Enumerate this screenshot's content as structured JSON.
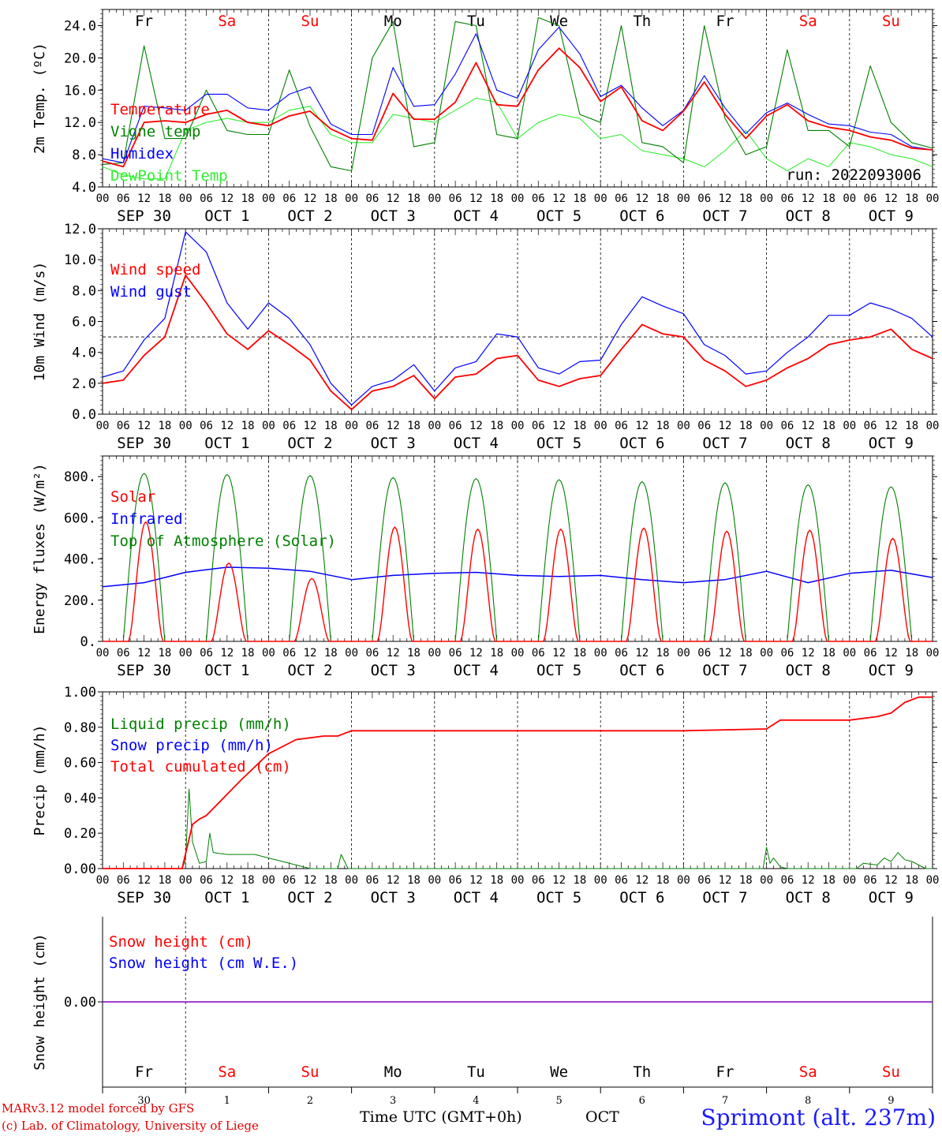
{
  "colors": {
    "red": "#ff0000",
    "green": "#008000",
    "blue": "#0000ff",
    "lightgreen": "#33ee33",
    "purple": "#8000c0",
    "grid": "#000000"
  },
  "footer": {
    "credit_line1": "MARv3.12 model forced by GFS",
    "credit_line2": "(c) Lab. of Climatology, University of Liege",
    "station": "Sprimont (alt. 237m)",
    "time_label": "Time UTC (GMT+0h)",
    "month_label": "OCT"
  },
  "chart_data": [
    {
      "type": "line",
      "ylabel": "2m Temp. (ºC)",
      "ylim": [
        4.0,
        26.0
      ],
      "yticks": [
        "4.0",
        "8.0",
        "12.0",
        "16.0",
        "20.0",
        "24.0"
      ],
      "annotation": "run: 2022093006",
      "weekdays": [
        "Fr",
        "Sa",
        "Su",
        "Mo",
        "Tu",
        "We",
        "Th",
        "Fr",
        "Sa",
        "Su"
      ],
      "weekday_weekend": [
        false,
        true,
        true,
        false,
        false,
        false,
        false,
        false,
        true,
        true
      ],
      "hour_ticks": [
        "00",
        "06",
        "12",
        "18"
      ],
      "day_labels": [
        "SEP 30",
        "OCT  1",
        "OCT  2",
        "OCT  3",
        "OCT  4",
        "OCT  5",
        "OCT  6",
        "OCT  7",
        "OCT  8",
        "OCT  9"
      ],
      "legend": [
        "Temperature",
        "Vigne temp",
        "Humidex",
        "DewPoint Temp"
      ],
      "x_hours": [
        0,
        6,
        12,
        18,
        24,
        30,
        36,
        42,
        48,
        54,
        60,
        66,
        72,
        78,
        84,
        90,
        96,
        102,
        108,
        114,
        120,
        126,
        132,
        138,
        144,
        150,
        156,
        162,
        168,
        174,
        180,
        186,
        192,
        198,
        204,
        210,
        216,
        222,
        228,
        234,
        240
      ],
      "series": [
        {
          "name": "Temperature",
          "values": [
            7.2,
            6.5,
            12.0,
            12.2,
            12.0,
            13.0,
            13.5,
            12.0,
            11.6,
            12.8,
            13.4,
            11.2,
            10.0,
            9.8,
            15.6,
            12.4,
            12.4,
            14.5,
            19.4,
            14.2,
            14.0,
            18.5,
            21.2,
            18.8,
            14.6,
            16.4,
            12.2,
            11.0,
            13.4,
            17.0,
            13.0,
            10.0,
            12.8,
            14.2,
            12.2,
            11.4,
            11.0,
            10.2,
            9.8,
            8.8,
            8.6
          ]
        },
        {
          "name": "Vigne temp",
          "values": [
            6.8,
            7.0,
            21.5,
            10.0,
            10.0,
            16.0,
            11.0,
            10.5,
            10.5,
            18.5,
            11.5,
            6.5,
            6.0,
            20.0,
            24.5,
            9.0,
            9.5,
            24.5,
            24.0,
            10.5,
            10.0,
            25.0,
            24.0,
            13.0,
            12.0,
            24.0,
            9.5,
            9.0,
            7.0,
            24.0,
            12.5,
            8.0,
            9.0,
            21.0,
            11.0,
            11.0,
            9.0,
            19.0,
            12.0,
            9.5,
            8.8
          ]
        },
        {
          "name": "Humidex",
          "values": [
            7.5,
            7.0,
            14.0,
            13.8,
            13.5,
            15.5,
            15.5,
            13.8,
            13.5,
            15.5,
            16.4,
            11.8,
            10.5,
            10.5,
            18.8,
            14.0,
            14.2,
            18.0,
            23.0,
            16.0,
            15.0,
            21.0,
            23.8,
            20.5,
            15.2,
            16.6,
            13.8,
            11.6,
            13.5,
            17.8,
            13.8,
            10.6,
            13.2,
            14.4,
            13.0,
            11.8,
            11.6,
            10.8,
            10.5,
            9.0,
            8.6
          ]
        },
        {
          "name": "DewPoint Temp",
          "values": [
            6.5,
            5.5,
            5.0,
            5.0,
            11.0,
            12.0,
            12.5,
            12.0,
            12.0,
            13.5,
            14.0,
            10.5,
            9.5,
            9.5,
            13.0,
            12.5,
            12.0,
            13.5,
            15.0,
            14.5,
            10.0,
            12.0,
            13.0,
            12.5,
            10.0,
            10.5,
            8.5,
            8.0,
            7.5,
            6.5,
            8.5,
            11.0,
            7.5,
            6.0,
            7.5,
            6.5,
            9.5,
            9.0,
            8.0,
            7.5,
            6.5
          ]
        }
      ]
    },
    {
      "type": "line",
      "ylabel": "10m Wind (m/s)",
      "ylim": [
        0.0,
        12.0
      ],
      "yticks": [
        "0.0",
        "2.0",
        "4.0",
        "6.0",
        "8.0",
        "10.0",
        "12.0"
      ],
      "ref_line": 5.0,
      "hour_ticks": [
        "00",
        "06",
        "12",
        "18"
      ],
      "day_labels": [
        "SEP 30",
        "OCT  1",
        "OCT  2",
        "OCT  3",
        "OCT  4",
        "OCT  5",
        "OCT  6",
        "OCT  7",
        "OCT  8",
        "OCT  9"
      ],
      "legend": [
        "Wind speed",
        "Wind gust"
      ],
      "x_hours": [
        0,
        6,
        12,
        18,
        24,
        30,
        36,
        42,
        48,
        54,
        60,
        66,
        72,
        78,
        84,
        90,
        96,
        102,
        108,
        114,
        120,
        126,
        132,
        138,
        144,
        150,
        156,
        162,
        168,
        174,
        180,
        186,
        192,
        198,
        204,
        210,
        216,
        222,
        228,
        234,
        240
      ],
      "series": [
        {
          "name": "Wind speed",
          "values": [
            2.0,
            2.2,
            3.8,
            5.0,
            9.0,
            7.2,
            5.2,
            4.2,
            5.4,
            4.5,
            3.5,
            1.5,
            0.3,
            1.5,
            1.8,
            2.5,
            1.0,
            2.4,
            2.6,
            3.6,
            3.8,
            2.2,
            1.8,
            2.3,
            2.5,
            4.2,
            5.8,
            5.2,
            5.0,
            3.5,
            2.8,
            1.8,
            2.2,
            3.0,
            3.6,
            4.5,
            4.8,
            5.0,
            5.5,
            4.2,
            3.6
          ]
        },
        {
          "name": "Wind gust",
          "values": [
            2.4,
            2.8,
            4.8,
            6.2,
            11.8,
            10.5,
            7.2,
            5.5,
            7.2,
            6.2,
            4.5,
            2.0,
            0.6,
            1.8,
            2.2,
            3.2,
            1.5,
            3.0,
            3.4,
            5.2,
            5.0,
            3.0,
            2.6,
            3.4,
            3.5,
            5.8,
            7.6,
            7.0,
            6.5,
            4.5,
            3.8,
            2.6,
            2.8,
            4.0,
            5.0,
            6.4,
            6.4,
            7.2,
            6.8,
            6.2,
            5.0
          ]
        }
      ]
    },
    {
      "type": "line",
      "ylabel": "Energy fluxes (W/m²)",
      "ylim": [
        0,
        900
      ],
      "yticks": [
        "0.",
        "200.",
        "400.",
        "600.",
        "800."
      ],
      "hour_ticks": [
        "00",
        "06",
        "12",
        "18"
      ],
      "day_labels": [
        "SEP 30",
        "OCT  1",
        "OCT  2",
        "OCT  3",
        "OCT  4",
        "OCT  5",
        "OCT  6",
        "OCT  7",
        "OCT  8",
        "OCT  9"
      ],
      "legend": [
        "Solar",
        "Infrared",
        "Top of Atmosphere (Solar)"
      ],
      "toa_daily_peaks": [
        815,
        810,
        805,
        795,
        790,
        785,
        775,
        770,
        760,
        750
      ],
      "solar_daily_peaks": [
        580,
        380,
        305,
        555,
        545,
        545,
        550,
        535,
        540,
        500
      ],
      "infrared_x_hours": [
        0,
        12,
        24,
        36,
        48,
        60,
        72,
        84,
        96,
        108,
        120,
        132,
        144,
        156,
        168,
        180,
        192,
        204,
        216,
        228,
        240
      ],
      "infrared_values": [
        265,
        285,
        335,
        360,
        355,
        340,
        300,
        320,
        330,
        335,
        320,
        315,
        320,
        300,
        285,
        300,
        340,
        285,
        330,
        345,
        310
      ]
    },
    {
      "type": "line",
      "ylabel": "Precip (mm/h)",
      "ylim": [
        0.0,
        1.0
      ],
      "yticks": [
        "0.00",
        "0.20",
        "0.40",
        "0.60",
        "0.80",
        "1.00"
      ],
      "hour_ticks": [
        "00",
        "06",
        "12",
        "18"
      ],
      "day_labels": [
        "SEP 30",
        "OCT  1",
        "OCT  2",
        "OCT  3",
        "OCT  4",
        "OCT  5",
        "OCT  6",
        "OCT  7",
        "OCT  8",
        "OCT  9"
      ],
      "legend": [
        "Liquid precip (mm/h)",
        "Snow precip (mm/h)",
        "Total cumulated (cm)"
      ],
      "series": [
        {
          "name": "Total cumulated (cm)",
          "x_hours": [
            0,
            23,
            26,
            28,
            30,
            40,
            48,
            56,
            64,
            68,
            72,
            96,
            120,
            144,
            168,
            192,
            196,
            200,
            216,
            224,
            228,
            232,
            236,
            240
          ],
          "values": [
            0,
            0,
            0.25,
            0.28,
            0.3,
            0.5,
            0.65,
            0.73,
            0.75,
            0.75,
            0.78,
            0.78,
            0.78,
            0.78,
            0.78,
            0.79,
            0.84,
            0.84,
            0.84,
            0.86,
            0.88,
            0.94,
            0.97,
            0.97
          ]
        },
        {
          "name": "Liquid precip (mm/h)",
          "x_hours": [
            0,
            23,
            24,
            25,
            26,
            28,
            30,
            31,
            32,
            36,
            40,
            44,
            48,
            52,
            56,
            60,
            64,
            68,
            69,
            70,
            71,
            72,
            191,
            192,
            193,
            194,
            196,
            198,
            200,
            218,
            220,
            224,
            226,
            228,
            230,
            232,
            234,
            236,
            238,
            240
          ],
          "values": [
            0,
            0,
            0.05,
            0.45,
            0.15,
            0.03,
            0.04,
            0.2,
            0.09,
            0.08,
            0.08,
            0.08,
            0.06,
            0.04,
            0.02,
            0.0,
            0.0,
            0.0,
            0.08,
            0.04,
            0.0,
            0.0,
            0.0,
            0.12,
            0.03,
            0.06,
            0.01,
            0.0,
            0.0,
            0.0,
            0.03,
            0.02,
            0.06,
            0.04,
            0.09,
            0.05,
            0.04,
            0.02,
            0.0,
            0.0
          ]
        }
      ]
    },
    {
      "type": "line",
      "ylabel": "Snow height (cm)",
      "ytick": "0.00",
      "legend": [
        "Snow height (cm)",
        "Snow height (cm W.E.)"
      ],
      "weekdays": [
        "Fr",
        "Sa",
        "Su",
        "Mo",
        "Tu",
        "We",
        "Th",
        "Fr",
        "Sa",
        "Su"
      ],
      "weekday_weekend": [
        false,
        true,
        true,
        false,
        false,
        false,
        false,
        false,
        true,
        true
      ],
      "day_numbers": [
        "30",
        "1",
        "2",
        "3",
        "4",
        "5",
        "6",
        "7",
        "8",
        "9"
      ],
      "series": [
        {
          "name": "Snow height (cm)",
          "values": [
            0.0,
            0.0
          ]
        },
        {
          "name": "Snow height (cm W.E.)",
          "values": [
            0.0,
            0.0
          ]
        }
      ]
    }
  ]
}
